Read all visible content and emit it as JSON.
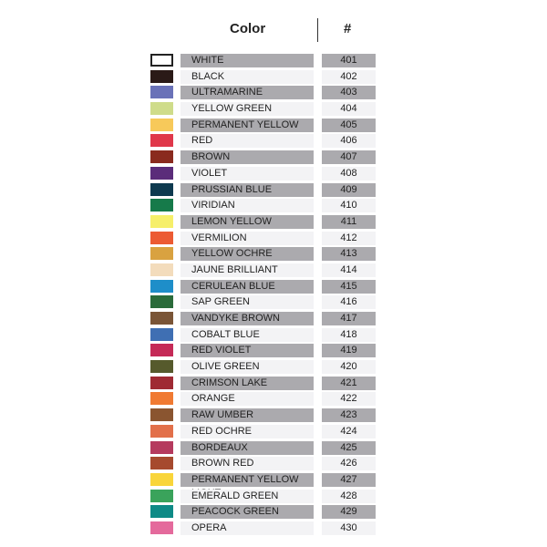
{
  "header": {
    "color": "Color",
    "number": "#"
  },
  "table": {
    "rows": [
      {
        "name": "WHITE",
        "number": 401,
        "swatch": "#ffffff"
      },
      {
        "name": "BLACK",
        "number": 402,
        "swatch": "#2a1a17"
      },
      {
        "name": "ULTRAMARINE",
        "number": 403,
        "swatch": "#6a72b8"
      },
      {
        "name": "YELLOW GREEN",
        "number": 404,
        "swatch": "#cfdc8a"
      },
      {
        "name": "PERMANENT YELLOW DEEP",
        "number": 405,
        "swatch": "#f7c95a"
      },
      {
        "name": "RED",
        "number": 406,
        "swatch": "#e0384a"
      },
      {
        "name": "BROWN",
        "number": 407,
        "swatch": "#8a2a1e"
      },
      {
        "name": "VIOLET",
        "number": 408,
        "swatch": "#5b2c7a"
      },
      {
        "name": "PRUSSIAN BLUE",
        "number": 409,
        "swatch": "#0e3a4f"
      },
      {
        "name": "VIRIDIAN",
        "number": 410,
        "swatch": "#167a4a"
      },
      {
        "name": "LEMON YELLOW",
        "number": 411,
        "swatch": "#f6ef6a"
      },
      {
        "name": "VERMILION",
        "number": 412,
        "swatch": "#ec5b33"
      },
      {
        "name": "YELLOW OCHRE",
        "number": 413,
        "swatch": "#d9a240"
      },
      {
        "name": "JAUNE BRILLIANT",
        "number": 414,
        "swatch": "#f3dcbc"
      },
      {
        "name": "CERULEAN BLUE",
        "number": 415,
        "swatch": "#1e8ec9"
      },
      {
        "name": "SAP GREEN",
        "number": 416,
        "swatch": "#2a6b3a"
      },
      {
        "name": "VANDYKE BROWN",
        "number": 417,
        "swatch": "#7a5537"
      },
      {
        "name": "COBALT BLUE",
        "number": 418,
        "swatch": "#3f6fb3"
      },
      {
        "name": "RED VIOLET",
        "number": 419,
        "swatch": "#c52a57"
      },
      {
        "name": "OLIVE GREEN",
        "number": 420,
        "swatch": "#565a2c"
      },
      {
        "name": "CRIMSON LAKE",
        "number": 421,
        "swatch": "#9f2a33"
      },
      {
        "name": "ORANGE",
        "number": 422,
        "swatch": "#f07a32"
      },
      {
        "name": "RAW UMBER",
        "number": 423,
        "swatch": "#8a5530"
      },
      {
        "name": "RED OCHRE",
        "number": 424,
        "swatch": "#e2704a"
      },
      {
        "name": "BORDEAUX",
        "number": 425,
        "swatch": "#b53a5e"
      },
      {
        "name": "BROWN RED",
        "number": 426,
        "swatch": "#a64a2e"
      },
      {
        "name": "PERMANENT YELLOW LIGHT",
        "number": 427,
        "swatch": "#f9d53a"
      },
      {
        "name": "EMERALD GREEN",
        "number": 428,
        "swatch": "#3aa35b"
      },
      {
        "name": "PEACOCK GREEN",
        "number": 429,
        "swatch": "#0e8a86"
      },
      {
        "name": "OPERA",
        "number": 430,
        "swatch": "#e46a9c"
      }
    ]
  }
}
